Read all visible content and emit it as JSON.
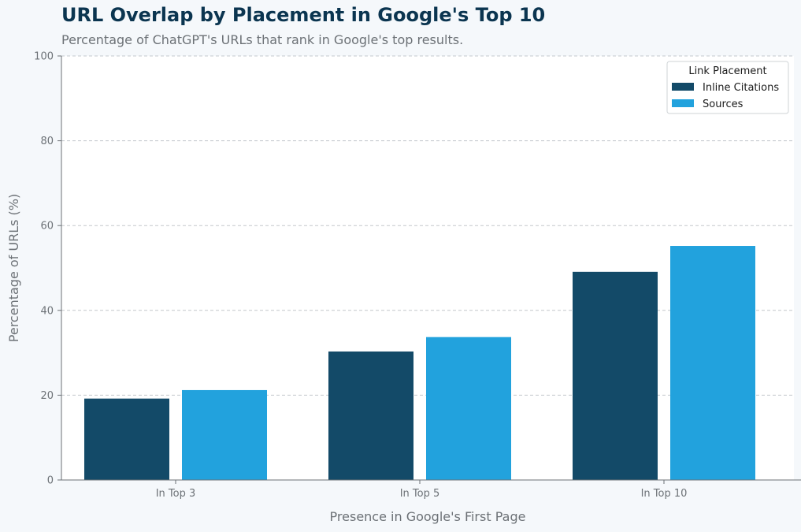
{
  "chart_data": {
    "type": "bar",
    "title": "URL Overlap by Placement in Google's Top 10",
    "subtitle": "Percentage of ChatGPT's URLs that rank in Google's top results.",
    "xlabel": "Presence in Google's First Page",
    "ylabel": "Percentage of URLs (%)",
    "categories": [
      "In Top 3",
      "In Top 5",
      "In Top 10"
    ],
    "series": [
      {
        "name": "Inline Citations",
        "values": [
          19.2,
          30.3,
          49.1
        ],
        "color": "#134a68"
      },
      {
        "name": "Sources",
        "values": [
          21.2,
          33.7,
          55.2
        ],
        "color": "#22a2dd"
      }
    ],
    "ylim": [
      0,
      100
    ],
    "yticks": [
      0,
      20,
      40,
      60,
      80,
      100
    ],
    "grid": true,
    "legend": {
      "title": "Link Placement",
      "placement": "top-right"
    }
  }
}
